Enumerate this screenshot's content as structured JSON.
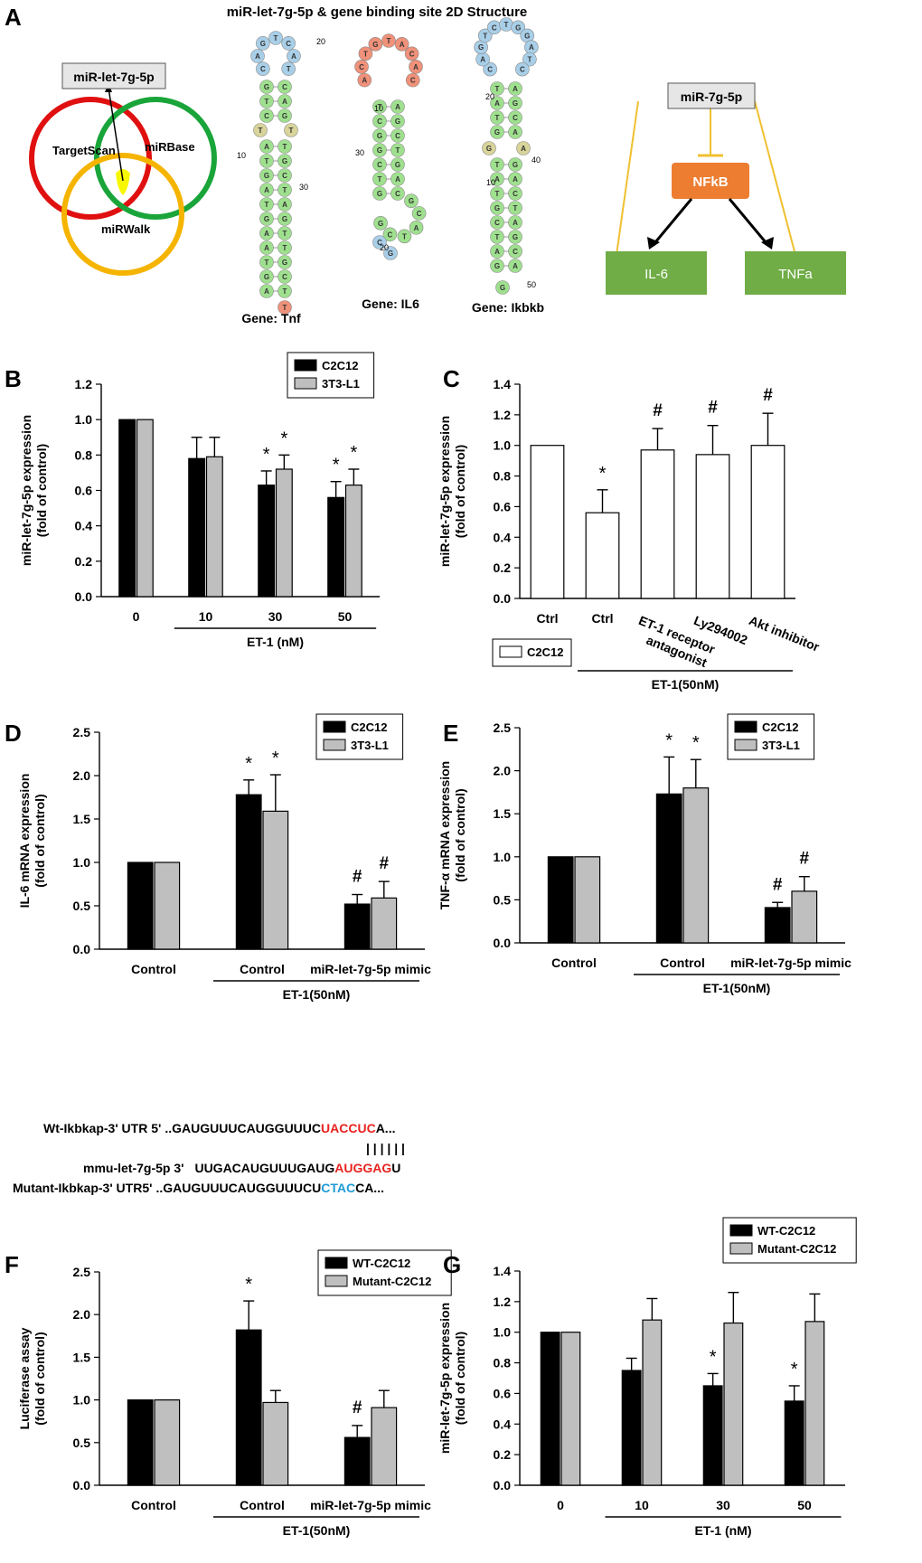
{
  "colors": {
    "black": "#000000",
    "grey": "#bfbfbf",
    "white": "#ffffff",
    "red_seq": "#e8231f",
    "blue_seq": "#1e9bd7",
    "venn_red": "#e01010",
    "venn_green": "#1aa53a",
    "venn_yellow": "#f5b400",
    "node_blue": "#a9cfe8",
    "node_green": "#9fe08f",
    "node_orange": "#f0917a",
    "node_tan": "#d8d49a",
    "box_orange": "#ed7d31",
    "box_green": "#70ad47",
    "line_gold": "#f0c030"
  },
  "panelA": {
    "letter": "A",
    "title": "miR-let-7g-5p & gene binding site  2D Structure",
    "venn": {
      "target": "miR-let-7g-5p",
      "circles": [
        "TargetScan",
        "miRBase",
        "miRWalk"
      ]
    },
    "structures": [
      {
        "label": "Gene: Tnf",
        "numbers": [
          "20",
          "10",
          "30"
        ]
      },
      {
        "label": "Gene: IL6",
        "numbers": [
          "10",
          "30",
          "20"
        ]
      },
      {
        "label": "Gene: Ikbkb",
        "numbers": [
          "20",
          "40",
          "10",
          "50"
        ]
      }
    ],
    "pathway": {
      "top": "miR-7g-5p",
      "middle": "NFkB",
      "left": "IL-6",
      "right": "TNFa"
    }
  },
  "sequences": {
    "rows": [
      {
        "label": "Wt-Ikbkap-3' UTR 5'",
        "pre": "..GAUGUUUCAUGGUUUC",
        "hl": "UACCUC",
        "post": "A...",
        "hlcolor": "red"
      },
      {
        "label": "mmu-let-7g-5p  3'",
        "pre": "UUGACAUGUUUGAUG",
        "hl": "AUGGAG",
        "post": "U",
        "hlcolor": "red"
      },
      {
        "label": "Mutant-Ikbkap-3' UTR5'",
        "pre": "..GAUGUUUCAUGGUUUCU",
        "hl": "CTAC",
        "post": "CA...",
        "hlcolor": "blue"
      }
    ],
    "bars": "| | | | | |"
  },
  "chart_data": [
    {
      "panel": "B",
      "type": "bar",
      "ylabel": "miR-let-7g-5p expression\n(fold of control)",
      "ylim": [
        0,
        1.2
      ],
      "yticks": [
        "0.0",
        "0.2",
        "0.4",
        "0.6",
        "0.8",
        "1.0",
        "1.2"
      ],
      "categories": [
        "0",
        "10",
        "30",
        "50"
      ],
      "group_label": "ET-1 (nM)",
      "series": [
        {
          "name": "C2C12",
          "color": "#000000",
          "values": [
            1.0,
            0.78,
            0.63,
            0.56
          ],
          "errors": [
            0,
            0.12,
            0.08,
            0.09
          ],
          "marks": [
            "",
            "",
            "*",
            "*"
          ]
        },
        {
          "name": "3T3-L1",
          "color": "#bfbfbf",
          "values": [
            1.0,
            0.79,
            0.72,
            0.63
          ],
          "errors": [
            0,
            0.11,
            0.08,
            0.09
          ],
          "marks": [
            "",
            "",
            "*",
            "*"
          ]
        }
      ]
    },
    {
      "panel": "C",
      "type": "bar",
      "ylabel": "miR-let-7g-5p expression\n(fold of control)",
      "ylim": [
        0,
        1.4
      ],
      "yticks": [
        "0.0",
        "0.2",
        "0.4",
        "0.6",
        "0.8",
        "1.0",
        "1.2",
        "1.4"
      ],
      "categories": [
        "Ctrl",
        "Ctrl",
        "ET-1 receptor antagonist",
        "Ly294002",
        "Akt inhibitor"
      ],
      "group_label": "ET-1(50nM)",
      "series": [
        {
          "name": "C2C12",
          "color": "#ffffff",
          "values": [
            1.0,
            0.56,
            0.97,
            0.94,
            1.0
          ],
          "errors": [
            0,
            0.15,
            0.14,
            0.19,
            0.21
          ],
          "marks": [
            "",
            "*",
            "#",
            "#",
            "#"
          ]
        }
      ]
    },
    {
      "panel": "D",
      "type": "bar",
      "ylabel": "IL-6 mRNA expression\n(fold of control)",
      "ylim": [
        0,
        2.5
      ],
      "yticks": [
        "0.0",
        "0.5",
        "1.0",
        "1.5",
        "2.0",
        "2.5"
      ],
      "categories": [
        "Control",
        "Control",
        "miR-let-7g-5p mimic"
      ],
      "group_label": "ET-1(50nM)",
      "series": [
        {
          "name": "C2C12",
          "color": "#000000",
          "values": [
            1.0,
            1.78,
            0.52
          ],
          "errors": [
            0,
            0.17,
            0.11
          ],
          "marks": [
            "",
            "*",
            "#"
          ]
        },
        {
          "name": "3T3-L1",
          "color": "#bfbfbf",
          "values": [
            1.0,
            1.59,
            0.59
          ],
          "errors": [
            0,
            0.42,
            0.19
          ],
          "marks": [
            "",
            "*",
            "#"
          ]
        }
      ]
    },
    {
      "panel": "E",
      "type": "bar",
      "ylabel": "TNF-α mRNA expression\n(fold of control)",
      "ylim": [
        0,
        2.5
      ],
      "yticks": [
        "0.0",
        "0.5",
        "1.0",
        "1.5",
        "2.0",
        "2.5"
      ],
      "categories": [
        "Control",
        "Control",
        "miR-let-7g-5p mimic"
      ],
      "group_label": "ET-1(50nM)",
      "series": [
        {
          "name": "C2C12",
          "color": "#000000",
          "values": [
            1.0,
            1.73,
            0.41
          ],
          "errors": [
            0,
            0.43,
            0.06
          ],
          "marks": [
            "",
            "*",
            "#"
          ]
        },
        {
          "name": "3T3-L1",
          "color": "#bfbfbf",
          "values": [
            1.0,
            1.8,
            0.6
          ],
          "errors": [
            0,
            0.33,
            0.17
          ],
          "marks": [
            "",
            "*",
            "#"
          ]
        }
      ]
    },
    {
      "panel": "F",
      "type": "bar",
      "ylabel": "Luciferase assay\n(fold of control)",
      "ylim": [
        0,
        2.5
      ],
      "yticks": [
        "0.0",
        "0.5",
        "1.0",
        "1.5",
        "2.0",
        "2.5"
      ],
      "categories": [
        "Control",
        "Control",
        "miR-let-7g-5p mimic"
      ],
      "group_label": "ET-1(50nM)",
      "series": [
        {
          "name": "WT-C2C12",
          "color": "#000000",
          "values": [
            1.0,
            1.82,
            0.56
          ],
          "errors": [
            0,
            0.34,
            0.14
          ],
          "marks": [
            "",
            "*",
            "#"
          ]
        },
        {
          "name": "Mutant-C2C12",
          "color": "#bfbfbf",
          "values": [
            1.0,
            0.97,
            0.91
          ],
          "errors": [
            0,
            0.14,
            0.2
          ],
          "marks": [
            "",
            "",
            ""
          ]
        }
      ]
    },
    {
      "panel": "G",
      "type": "bar",
      "ylabel": "miR-let-7g-5p expression\n(fold of control)",
      "ylim": [
        0,
        1.4
      ],
      "yticks": [
        "0.0",
        "0.2",
        "0.4",
        "0.6",
        "0.8",
        "1.0",
        "1.2",
        "1.4"
      ],
      "categories": [
        "0",
        "10",
        "30",
        "50"
      ],
      "group_label": "ET-1 (nM)",
      "series": [
        {
          "name": "WT-C2C12",
          "color": "#000000",
          "values": [
            1.0,
            0.75,
            0.65,
            0.55
          ],
          "errors": [
            0,
            0.08,
            0.08,
            0.1
          ],
          "marks": [
            "",
            "",
            "*",
            "*"
          ]
        },
        {
          "name": "Mutant-C2C12",
          "color": "#bfbfbf",
          "values": [
            1.0,
            1.08,
            1.06,
            1.07
          ],
          "errors": [
            0,
            0.14,
            0.2,
            0.18
          ],
          "marks": [
            "",
            "",
            "",
            ""
          ]
        }
      ]
    }
  ]
}
